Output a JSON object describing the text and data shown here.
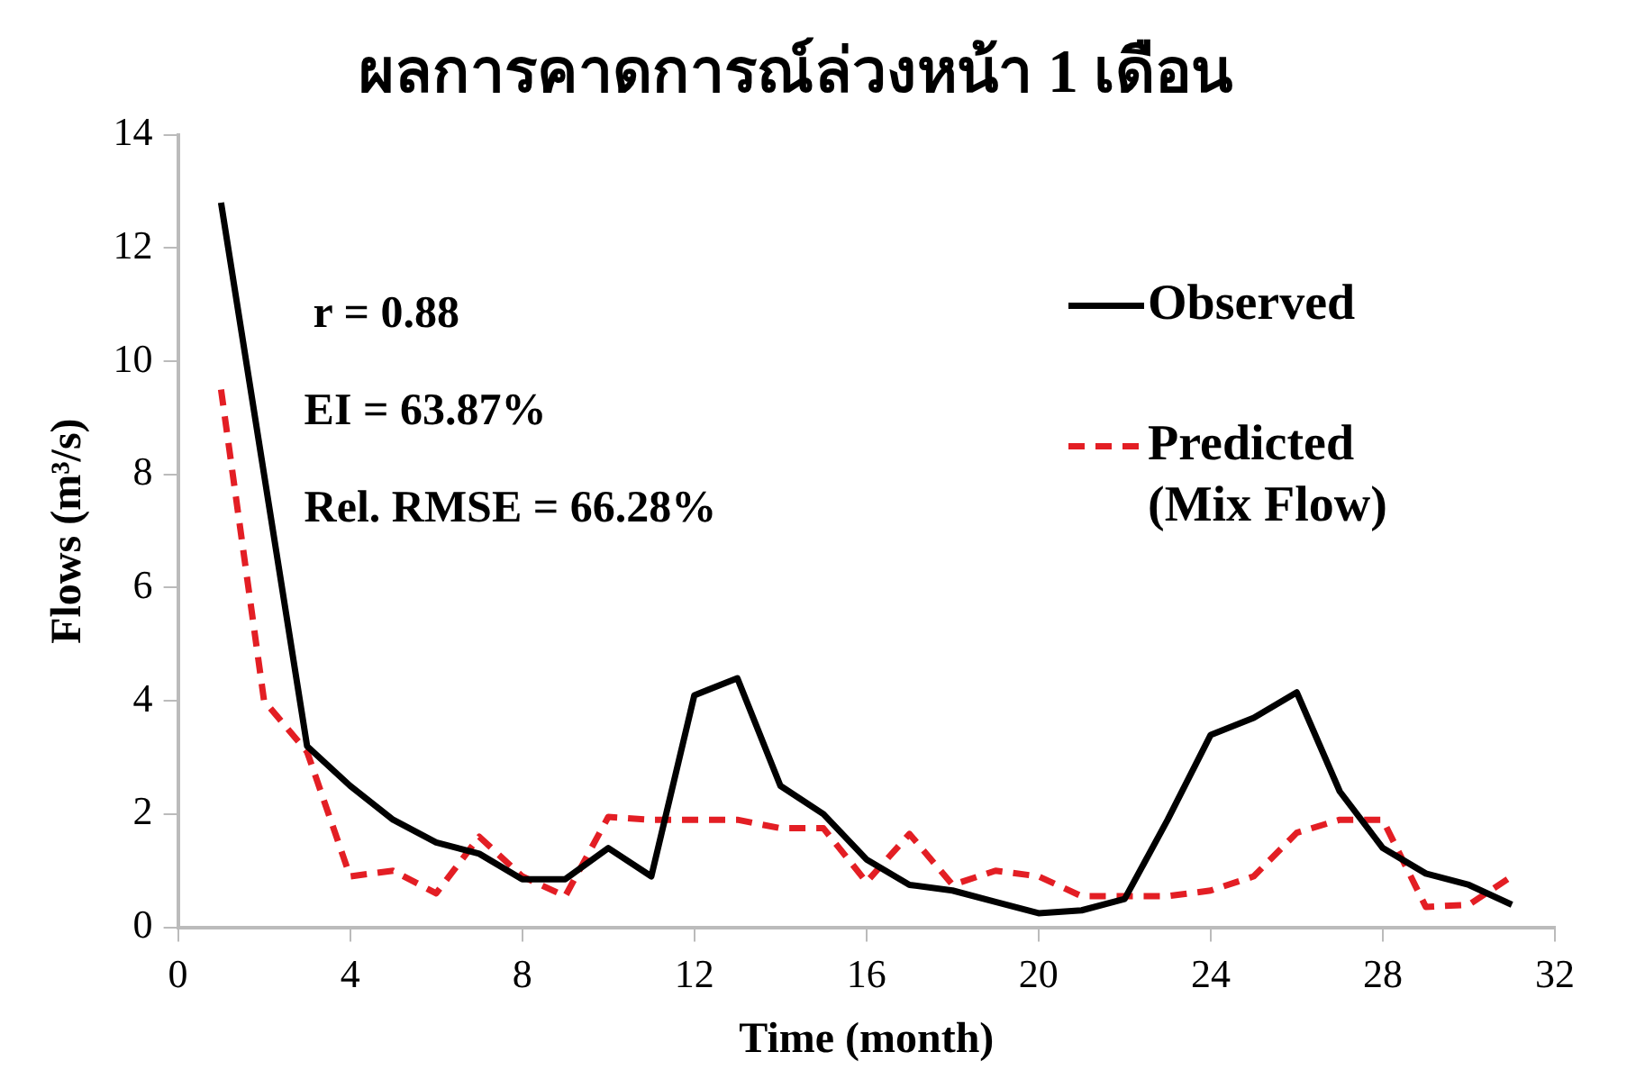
{
  "chart_data": {
    "type": "line",
    "title": "ผลการคาดการณ์ล่วงหน้า 1 เดือน",
    "xlabel": "Time (month)",
    "ylabel": "Flows (m³/s)",
    "x": [
      1,
      2,
      3,
      4,
      5,
      6,
      7,
      8,
      9,
      10,
      11,
      12,
      13,
      14,
      15,
      16,
      17,
      18,
      19,
      20,
      21,
      22,
      23,
      24,
      25,
      26,
      27,
      28,
      29,
      30,
      31
    ],
    "series": [
      {
        "name": "Observed",
        "color": "#000000",
        "line_style": "solid",
        "values": [
          12.8,
          8.0,
          3.2,
          2.5,
          1.9,
          1.5,
          1.3,
          0.85,
          0.85,
          1.4,
          0.9,
          4.1,
          4.4,
          2.5,
          2.0,
          1.2,
          0.75,
          0.65,
          0.45,
          0.25,
          0.3,
          0.5,
          1.9,
          3.4,
          3.7,
          4.15,
          2.4,
          1.4,
          0.95,
          0.75,
          0.4
        ]
      },
      {
        "name": "Predicted (Mix Flow)",
        "color": "#e31e24",
        "line_style": "dashed",
        "values": [
          9.5,
          4.0,
          3.1,
          0.9,
          1.0,
          0.6,
          1.6,
          0.9,
          0.55,
          1.95,
          1.9,
          1.9,
          1.9,
          1.75,
          1.75,
          0.8,
          1.65,
          0.75,
          1.0,
          0.9,
          0.55,
          0.55,
          0.55,
          0.65,
          0.9,
          1.67,
          1.9,
          1.9,
          0.36,
          0.4,
          0.9
        ]
      }
    ],
    "xlim": [
      0,
      32
    ],
    "xticks": [
      0,
      4,
      8,
      12,
      16,
      20,
      24,
      28,
      32
    ],
    "ylim": [
      0,
      14
    ],
    "yticks": [
      0,
      2,
      4,
      6,
      8,
      10,
      12,
      14
    ],
    "grid": false,
    "legend": "top right",
    "marker": "none",
    "annotations": [
      "r = 0.88",
      "EI = 63.87%",
      "Rel. RMSE = 66.28%"
    ]
  }
}
